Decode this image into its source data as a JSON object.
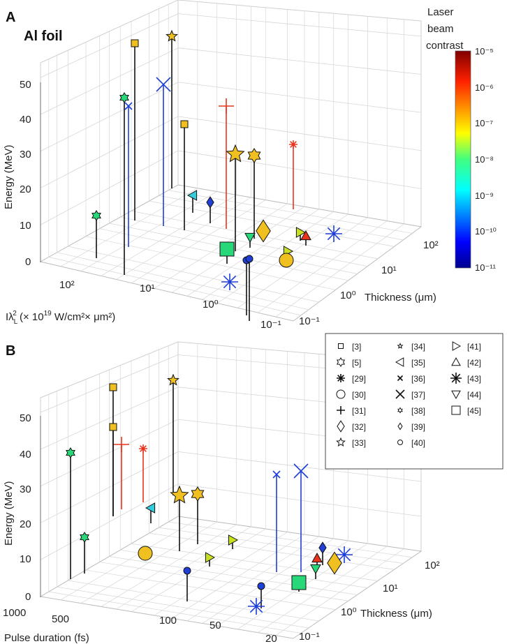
{
  "colors": {
    "panel_bg": "#ffffff",
    "grid": "#d6d6d6",
    "axis": "#6e6e6e",
    "stem": "#111111",
    "text": "#222222"
  },
  "chart_data": [
    {
      "panel_label": "A",
      "title": "Al foil",
      "type": "scatter",
      "zlabel": "Energy (MeV)",
      "xlabel": "Iλ_L² (× 10^19 W/cm² × μm²)",
      "xlabel_parts": {
        "base": "Iλ",
        "sub": "L",
        "sup": "2",
        "rest": " (× 10",
        "exp": "19",
        "units": " W/cm²× μm²)"
      },
      "ylabel": "Thickness (μm)",
      "zlim": [
        0,
        50
      ],
      "zticks": [
        "0",
        "10",
        "20",
        "30",
        "40",
        "50"
      ],
      "xticks": [
        "10²",
        "10¹",
        "10⁰",
        "10⁻¹"
      ],
      "yticks": [
        "10⁻¹",
        "10⁰",
        "10¹",
        "10²"
      ],
      "colorbar": {
        "title_lines": [
          "Laser",
          "beam",
          "contrast"
        ],
        "ticks": [
          "10⁻⁵",
          "10⁻⁶",
          "10⁻⁷",
          "10⁻⁸",
          "10⁻⁹",
          "10⁻¹⁰",
          "10⁻¹¹"
        ]
      },
      "points": [
        {
          "ref": "[33]",
          "marker": "star",
          "color": "#f0c020",
          "size": 8,
          "tip": [
            246,
            52
          ],
          "base": [
            246,
            270
          ]
        },
        {
          "ref": "[3]",
          "marker": "square",
          "color": "#f0c020",
          "size": 5,
          "tip": [
            193,
            62
          ],
          "base": [
            193,
            316
          ]
        },
        {
          "ref": "[37]",
          "marker": "x",
          "color": "#1f3fd6",
          "size": 10,
          "tip": [
            234,
            121
          ],
          "base": [
            234,
            324
          ]
        },
        {
          "ref": "[38]",
          "marker": "hexagram",
          "color": "#28d878",
          "size": 7,
          "tip": [
            178,
            140
          ],
          "base": [
            178,
            394
          ]
        },
        {
          "ref": "[36]",
          "marker": "x",
          "color": "#1f3fd6",
          "size": 5,
          "tip": [
            184,
            152
          ],
          "base": [
            184,
            354
          ]
        },
        {
          "ref": "[31]",
          "marker": "plus",
          "color": "#e8341c",
          "size": 11,
          "tip": [
            324,
            152
          ],
          "base": [
            324,
            328
          ]
        },
        {
          "ref": "[3]",
          "marker": "square",
          "color": "#f0c020",
          "size": 5,
          "tip": [
            264,
            178
          ],
          "base": [
            264,
            330
          ]
        },
        {
          "ref": "[29]",
          "marker": "asterisk",
          "color": "#e8341c",
          "size": 6,
          "tip": [
            420,
            207
          ],
          "base": [
            420,
            300
          ]
        },
        {
          "ref": "[33]",
          "marker": "star",
          "color": "#f0c020",
          "size": 13,
          "tip": [
            337,
            221
          ],
          "base": [
            337,
            360
          ]
        },
        {
          "ref": "[5]",
          "marker": "hexagram",
          "color": "#f0c020",
          "size": 10,
          "tip": [
            364,
            223
          ],
          "base": [
            364,
            342
          ]
        },
        {
          "ref": "[35]",
          "marker": "triangle-left",
          "color": "#33ccdd",
          "size": 7,
          "tip": [
            276,
            280
          ],
          "base": [
            276,
            305
          ]
        },
        {
          "ref": "[39]",
          "marker": "diamond",
          "color": "#1f3fd6",
          "size": 6,
          "tip": [
            301,
            290
          ],
          "base": [
            301,
            320
          ]
        },
        {
          "ref": "[38]",
          "marker": "hexagram",
          "color": "#28d878",
          "size": 7,
          "tip": [
            138,
            309
          ],
          "base": [
            138,
            370
          ]
        },
        {
          "ref": "[32]",
          "marker": "diamond",
          "color": "#f0c020",
          "size": 12,
          "tip": [
            377,
            331
          ],
          "base": [
            377,
            345
          ]
        },
        {
          "ref": "[41]",
          "marker": "triangle-right",
          "color": "#c8e020",
          "size": 7,
          "tip": [
            430,
            333
          ],
          "base": [
            430,
            345
          ]
        },
        {
          "ref": "[42]",
          "marker": "triangle-up",
          "color": "#e8341c",
          "size": 7,
          "tip": [
            438,
            338
          ],
          "base": [
            438,
            352
          ]
        },
        {
          "ref": "[43]",
          "marker": "asterisk",
          "color": "#1f3fd6",
          "size": 12,
          "tip": [
            478,
            335
          ],
          "base": [
            478,
            335
          ]
        },
        {
          "ref": "[44]",
          "marker": "triangle-down",
          "color": "#28d878",
          "size": 7,
          "tip": [
            358,
            340
          ],
          "base": [
            358,
            355
          ]
        },
        {
          "ref": "[45]",
          "marker": "square",
          "color": "#28d878",
          "size": 10,
          "tip": [
            325,
            357
          ],
          "base": [
            325,
            378
          ]
        },
        {
          "ref": "[41]",
          "marker": "triangle-right",
          "color": "#c8e020",
          "size": 7,
          "tip": [
            412,
            360
          ],
          "base": [
            412,
            372
          ]
        },
        {
          "ref": "[40]",
          "marker": "circle",
          "color": "#1f3fd6",
          "size": 5,
          "tip": [
            353,
            373
          ],
          "base": [
            353,
            452
          ]
        },
        {
          "ref": "[40]",
          "marker": "circle",
          "color": "#1f3fd6",
          "size": 5,
          "tip": [
            357,
            371
          ],
          "base": [
            357,
            460
          ]
        },
        {
          "ref": "[30]",
          "marker": "circle",
          "color": "#f0c020",
          "size": 10,
          "tip": [
            410,
            373
          ],
          "base": [
            410,
            380
          ]
        },
        {
          "ref": "[43]",
          "marker": "asterisk",
          "color": "#1f3fd6",
          "size": 12,
          "tip": [
            329,
            404
          ],
          "base": [
            329,
            404
          ]
        }
      ]
    },
    {
      "panel_label": "B",
      "type": "scatter",
      "zlabel": "Energy (MeV)",
      "xlabel": "Pulse duration (fs)",
      "ylabel": "Thickness (μm)",
      "zlim": [
        0,
        50
      ],
      "zticks": [
        "0",
        "10",
        "20",
        "30",
        "40",
        "50"
      ],
      "xticks": [
        "1000",
        "500",
        "100",
        "50",
        "20"
      ],
      "yticks": [
        "10⁻¹",
        "10⁰",
        "10¹",
        "10²"
      ],
      "legend": {
        "position": "top-right",
        "entries": [
          {
            "marker": "square-small",
            "label": "[3]"
          },
          {
            "marker": "hexagram",
            "label": "[5]"
          },
          {
            "marker": "asterisk",
            "label": "[29]"
          },
          {
            "marker": "circle",
            "label": "[30]"
          },
          {
            "marker": "plus",
            "label": "[31]"
          },
          {
            "marker": "diamond",
            "label": "[32]"
          },
          {
            "marker": "star",
            "label": "[33]"
          },
          {
            "marker": "star-small",
            "label": "[34]"
          },
          {
            "marker": "triangle-left",
            "label": "[35]"
          },
          {
            "marker": "x-small",
            "label": "[36]"
          },
          {
            "marker": "x",
            "label": "[37]"
          },
          {
            "marker": "hexagram-small",
            "label": "[38]"
          },
          {
            "marker": "diamond-small",
            "label": "[39]"
          },
          {
            "marker": "circle-small",
            "label": "[40]"
          },
          {
            "marker": "triangle-right",
            "label": "[41]"
          },
          {
            "marker": "triangle-up",
            "label": "[42]"
          },
          {
            "marker": "asterisk-big",
            "label": "[43]"
          },
          {
            "marker": "triangle-down",
            "label": "[44]"
          },
          {
            "marker": "square",
            "label": "[45]"
          }
        ]
      },
      "points": [
        {
          "ref": "[33]",
          "marker": "star",
          "color": "#f0c020",
          "size": 8,
          "tip": [
            248,
            545
          ],
          "base": [
            248,
            710
          ]
        },
        {
          "ref": "[3]",
          "marker": "square",
          "color": "#f0c020",
          "size": 5,
          "tip": [
            162,
            555
          ],
          "base": [
            162,
            740
          ]
        },
        {
          "ref": "[3]",
          "marker": "square",
          "color": "#f0c020",
          "size": 5,
          "tip": [
            162,
            612
          ],
          "base": [
            162,
            740
          ]
        },
        {
          "ref": "[31]",
          "marker": "plus",
          "color": "#e8341c",
          "size": 11,
          "tip": [
            174,
            637
          ],
          "base": [
            174,
            730
          ]
        },
        {
          "ref": "[29]",
          "marker": "asterisk",
          "color": "#e8341c",
          "size": 6,
          "tip": [
            205,
            643
          ],
          "base": [
            205,
            720
          ]
        },
        {
          "ref": "[38]",
          "marker": "hexagram",
          "color": "#28d878",
          "size": 7,
          "tip": [
            101,
            649
          ],
          "base": [
            101,
            830
          ]
        },
        {
          "ref": "[36]",
          "marker": "x",
          "color": "#1f3fd6",
          "size": 5,
          "tip": [
            396,
            680
          ],
          "base": [
            396,
            820
          ]
        },
        {
          "ref": "[37]",
          "marker": "x",
          "color": "#1f3fd6",
          "size": 10,
          "tip": [
            431,
            675
          ],
          "base": [
            431,
            820
          ]
        },
        {
          "ref": "[33]",
          "marker": "star",
          "color": "#f0c020",
          "size": 13,
          "tip": [
            257,
            710
          ],
          "base": [
            257,
            790
          ]
        },
        {
          "ref": "[5]",
          "marker": "hexagram",
          "color": "#f0c020",
          "size": 10,
          "tip": [
            283,
            708
          ],
          "base": [
            283,
            780
          ]
        },
        {
          "ref": "[35]",
          "marker": "triangle-left",
          "color": "#33ccdd",
          "size": 7,
          "tip": [
            216,
            728
          ],
          "base": [
            216,
            750
          ]
        },
        {
          "ref": "[41]",
          "marker": "triangle-right",
          "color": "#c8e020",
          "size": 7,
          "tip": [
            333,
            774
          ],
          "base": [
            333,
            787
          ]
        },
        {
          "ref": "[38]",
          "marker": "hexagram",
          "color": "#28d878",
          "size": 7,
          "tip": [
            121,
            770
          ],
          "base": [
            121,
            822
          ]
        },
        {
          "ref": "[39]",
          "marker": "diamond",
          "color": "#1f3fd6",
          "size": 6,
          "tip": [
            462,
            785
          ],
          "base": [
            462,
            810
          ]
        },
        {
          "ref": "[30]",
          "marker": "circle",
          "color": "#f0c020",
          "size": 10,
          "tip": [
            208,
            793
          ],
          "base": [
            208,
            793
          ]
        },
        {
          "ref": "[43]",
          "marker": "asterisk",
          "color": "#1f3fd6",
          "size": 12,
          "tip": [
            493,
            795
          ],
          "base": [
            493,
            795
          ]
        },
        {
          "ref": "[42]",
          "marker": "triangle-up",
          "color": "#e8341c",
          "size": 7,
          "tip": [
            454,
            800
          ],
          "base": [
            454,
            815
          ]
        },
        {
          "ref": "[41]",
          "marker": "triangle-right",
          "color": "#c8e020",
          "size": 7,
          "tip": [
            300,
            799
          ],
          "base": [
            300,
            812
          ]
        },
        {
          "ref": "[32]",
          "marker": "diamond",
          "color": "#f0c020",
          "size": 12,
          "tip": [
            479,
            807
          ],
          "base": [
            479,
            820
          ]
        },
        {
          "ref": "[44]",
          "marker": "triangle-down",
          "color": "#28d878",
          "size": 7,
          "tip": [
            452,
            815
          ],
          "base": [
            452,
            830
          ]
        },
        {
          "ref": "[40]",
          "marker": "circle",
          "color": "#1f3fd6",
          "size": 5,
          "tip": [
            268,
            818
          ],
          "base": [
            268,
            862
          ]
        },
        {
          "ref": "[45]",
          "marker": "square",
          "color": "#28d878",
          "size": 10,
          "tip": [
            428,
            835
          ],
          "base": [
            428,
            848
          ]
        },
        {
          "ref": "[40]",
          "marker": "circle",
          "color": "#1f3fd6",
          "size": 5,
          "tip": [
            374,
            840
          ],
          "base": [
            374,
            872
          ]
        },
        {
          "ref": "[43]",
          "marker": "asterisk",
          "color": "#1f3fd6",
          "size": 12,
          "tip": [
            367,
            869
          ],
          "base": [
            367,
            869
          ]
        }
      ]
    }
  ]
}
